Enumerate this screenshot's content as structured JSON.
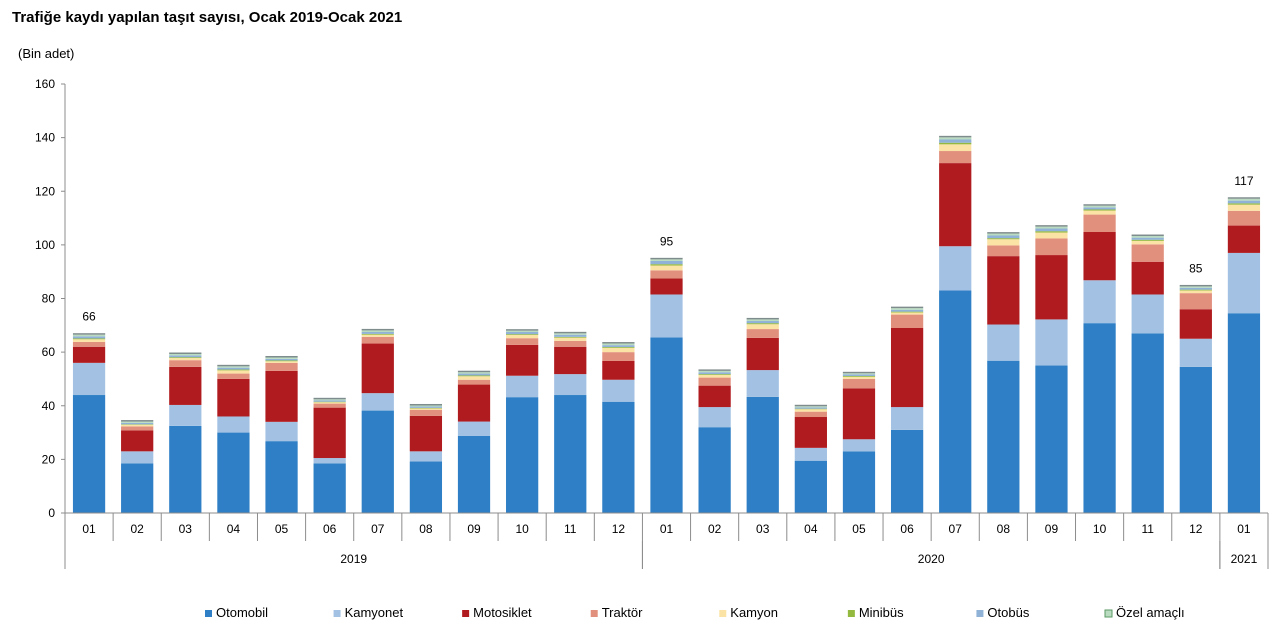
{
  "chart_data": {
    "type": "bar",
    "stacked": true,
    "title": "Trafiğe kaydı yapılan taşıt sayısı, Ocak 2019-Ocak 2021",
    "ylabel": "(Bin adet)",
    "ylim": [
      0,
      160
    ],
    "yticks": [
      0,
      20,
      40,
      60,
      80,
      100,
      120,
      140,
      160
    ],
    "categories": [
      "01",
      "02",
      "03",
      "04",
      "05",
      "06",
      "07",
      "08",
      "09",
      "10",
      "11",
      "12",
      "01",
      "02",
      "03",
      "04",
      "05",
      "06",
      "07",
      "08",
      "09",
      "10",
      "11",
      "12",
      "01"
    ],
    "years": [
      {
        "label": "2019",
        "start": 0,
        "end": 11
      },
      {
        "label": "2020",
        "start": 12,
        "end": 23
      },
      {
        "label": "2021",
        "start": 24,
        "end": 24
      }
    ],
    "series": [
      {
        "name": "Otomobil",
        "color": "#2e7fc6",
        "values": [
          44,
          18.5,
          32.5,
          30,
          26.8,
          18.5,
          38.2,
          19.2,
          28.8,
          43.2,
          44,
          41.5,
          65.5,
          32,
          43.3,
          19.5,
          23,
          31,
          83,
          56.8,
          55,
          70.8,
          67,
          54.5,
          74.5
        ]
      },
      {
        "name": "Kamyonet",
        "color": "#a3c2e3",
        "values": [
          12,
          4.5,
          7.8,
          6,
          7.2,
          2,
          6.5,
          3.8,
          5.3,
          8,
          7.8,
          8.2,
          16,
          7.5,
          10,
          4.8,
          4.5,
          8.5,
          16.5,
          13.5,
          17.2,
          16,
          14.5,
          10.5,
          22.5
        ]
      },
      {
        "name": "Motosiklet",
        "color": "#b01b1f",
        "values": [
          6,
          7.8,
          14.2,
          14,
          19,
          18.8,
          18.5,
          13.2,
          13.8,
          11.5,
          10.2,
          7,
          6,
          8,
          12,
          11.5,
          19,
          29.5,
          31,
          25.5,
          24,
          18,
          12.2,
          11,
          10.2
        ]
      },
      {
        "name": "Traktör",
        "color": "#e2907e",
        "values": [
          1.8,
          1.5,
          2.5,
          2,
          3,
          1.5,
          2.5,
          2.3,
          1.8,
          2.5,
          2.2,
          3.3,
          3,
          3,
          3.3,
          2,
          3.5,
          5,
          4.5,
          4,
          6.2,
          6.5,
          6.5,
          6,
          5.5
        ]
      },
      {
        "name": "Kamyon",
        "color": "#fbe3a6",
        "values": [
          1,
          0.6,
          0.8,
          1.2,
          0.6,
          0.5,
          0.8,
          0.5,
          1.3,
          1.2,
          1.2,
          1.6,
          1.8,
          1,
          1.8,
          0.9,
          0.8,
          0.8,
          2.5,
          2.3,
          2.2,
          1.5,
          1.3,
          1,
          2.3
        ]
      },
      {
        "name": "Minibüs",
        "color": "#93b93f",
        "values": [
          0.3,
          0.2,
          0.3,
          0.3,
          0.3,
          0.2,
          0.3,
          0.2,
          0.3,
          0.3,
          0.3,
          0.3,
          0.5,
          0.3,
          0.4,
          0.2,
          0.3,
          0.3,
          0.6,
          0.4,
          0.5,
          0.4,
          0.4,
          0.3,
          0.5
        ]
      },
      {
        "name": "Otobüs",
        "color": "#8fb2d6",
        "values": [
          0.8,
          0.5,
          0.7,
          0.7,
          0.6,
          0.5,
          0.7,
          0.5,
          0.7,
          0.8,
          0.8,
          0.7,
          1.2,
          0.7,
          0.8,
          0.5,
          0.6,
          0.7,
          1.2,
          1,
          1,
          0.8,
          0.8,
          0.7,
          1
        ]
      },
      {
        "name": "Özel amaçlı",
        "color": "#b9dcc0",
        "values": [
          0.6,
          0.5,
          0.5,
          0.5,
          0.5,
          0.4,
          0.6,
          0.4,
          0.5,
          0.5,
          0.5,
          0.6,
          0.6,
          0.5,
          0.6,
          0.4,
          0.4,
          0.6,
          0.8,
          0.7,
          0.7,
          0.6,
          0.6,
          0.5,
          0.7
        ]
      }
    ],
    "data_labels": [
      {
        "index": 0,
        "text": "66"
      },
      {
        "index": 12,
        "text": "95"
      },
      {
        "index": 23,
        "text": "85"
      },
      {
        "index": 24,
        "text": "117"
      }
    ]
  }
}
